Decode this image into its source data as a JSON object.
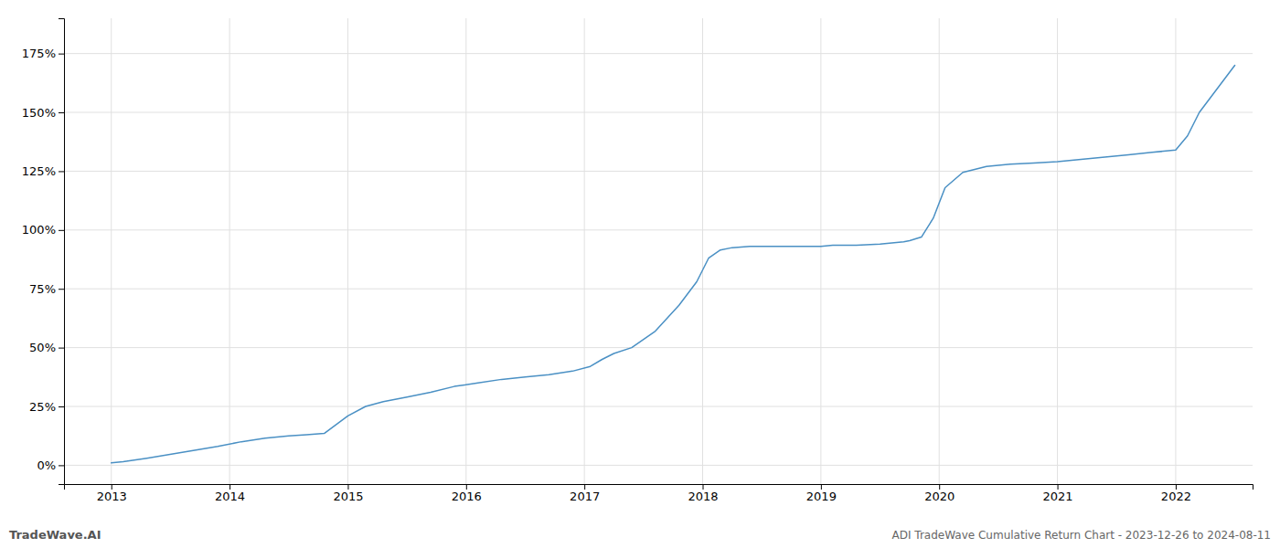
{
  "chart_data": {
    "type": "line",
    "title": "ADI TradeWave Cumulative Return Chart - 2023-12-26 to 2024-08-11",
    "annotations": [
      "TradeWave.AI"
    ],
    "color": "#4a90c4",
    "grid": true,
    "xlim": [
      2012.6,
      2022.65
    ],
    "xticks": [
      2013,
      2014,
      2015,
      2016,
      2017,
      2018,
      2019,
      2020,
      2021,
      2022
    ],
    "ylim": [
      -8,
      190
    ],
    "yticks": [
      {
        "value": 0,
        "label": "0%"
      },
      {
        "value": 25,
        "label": "25%"
      },
      {
        "value": 50,
        "label": "50%"
      },
      {
        "value": 75,
        "label": "75%"
      },
      {
        "value": 100,
        "label": "100%"
      },
      {
        "value": 125,
        "label": "125%"
      },
      {
        "value": 150,
        "label": "150%"
      },
      {
        "value": 175,
        "label": "175%"
      }
    ],
    "x": [
      2013.0,
      2013.1,
      2013.3,
      2013.6,
      2013.9,
      2014.1,
      2014.3,
      2014.5,
      2014.65,
      2014.8,
      2015.0,
      2015.15,
      2015.3,
      2015.5,
      2015.7,
      2015.9,
      2016.1,
      2016.3,
      2016.5,
      2016.7,
      2016.9,
      2017.05,
      2017.15,
      2017.25,
      2017.4,
      2017.6,
      2017.8,
      2017.95,
      2018.05,
      2018.15,
      2018.25,
      2018.4,
      2018.6,
      2018.8,
      2019.0,
      2019.1,
      2019.3,
      2019.5,
      2019.7,
      2019.75,
      2019.85,
      2019.95,
      2020.05,
      2020.2,
      2020.4,
      2020.6,
      2020.8,
      2021.0,
      2021.2,
      2021.4,
      2021.6,
      2021.8,
      2022.0,
      2022.1,
      2022.2,
      2022.35,
      2022.5
    ],
    "values": [
      1.0,
      1.5,
      3.0,
      5.5,
      8.0,
      10.0,
      11.5,
      12.5,
      13.0,
      13.5,
      21.0,
      25.0,
      27.0,
      29.0,
      31.0,
      33.5,
      35.0,
      36.5,
      37.5,
      38.5,
      40.0,
      42.0,
      45.0,
      47.5,
      50.0,
      57.0,
      68.0,
      78.0,
      88.0,
      91.5,
      92.5,
      93.0,
      93.0,
      93.0,
      93.0,
      93.5,
      93.5,
      94.0,
      95.0,
      95.5,
      97.0,
      105.0,
      118.0,
      124.5,
      127.0,
      128.0,
      128.5,
      129.0,
      130.0,
      131.0,
      132.0,
      133.0,
      134.0,
      140.0,
      150.0,
      160.0,
      170.0
    ]
  }
}
